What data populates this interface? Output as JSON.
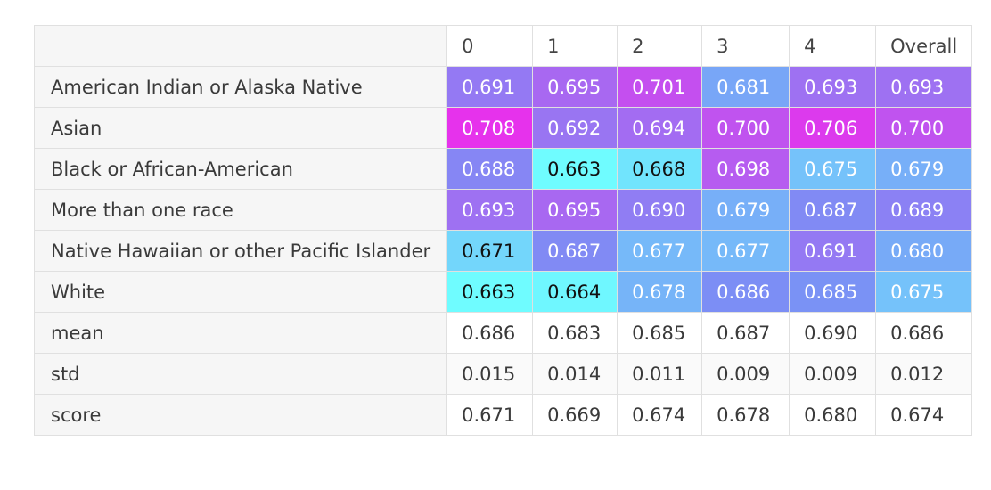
{
  "chart_data": {
    "type": "table",
    "columns": [
      "0",
      "1",
      "2",
      "3",
      "4",
      "Overall"
    ],
    "rows": [
      {
        "label": "American Indian or Alaska Native",
        "values": [
          "0.691",
          "0.695",
          "0.701",
          "0.681",
          "0.693",
          "0.693"
        ],
        "heat": true
      },
      {
        "label": "Asian",
        "values": [
          "0.708",
          "0.692",
          "0.694",
          "0.700",
          "0.706",
          "0.700"
        ],
        "heat": true
      },
      {
        "label": "Black or African-American",
        "values": [
          "0.688",
          "0.663",
          "0.668",
          "0.698",
          "0.675",
          "0.679"
        ],
        "heat": true
      },
      {
        "label": "More than one race",
        "values": [
          "0.693",
          "0.695",
          "0.690",
          "0.679",
          "0.687",
          "0.689"
        ],
        "heat": true
      },
      {
        "label": "Native Hawaiian or other Pacific Islander",
        "values": [
          "0.671",
          "0.687",
          "0.677",
          "0.677",
          "0.691",
          "0.680"
        ],
        "heat": true
      },
      {
        "label": "White",
        "values": [
          "0.663",
          "0.664",
          "0.678",
          "0.686",
          "0.685",
          "0.675"
        ],
        "heat": true
      },
      {
        "label": "mean",
        "values": [
          "0.686",
          "0.683",
          "0.685",
          "0.687",
          "0.690",
          "0.686"
        ],
        "heat": false
      },
      {
        "label": "std",
        "values": [
          "0.015",
          "0.014",
          "0.011",
          "0.009",
          "0.009",
          "0.012"
        ],
        "heat": false
      },
      {
        "label": "score",
        "values": [
          "0.671",
          "0.669",
          "0.674",
          "0.678",
          "0.680",
          "0.674"
        ],
        "heat": false
      }
    ],
    "color_scale": {
      "name": "cool",
      "low_color": "#6ffcff",
      "mid_color": "#7a90f5",
      "high_color": "#e632ec",
      "light_text_color": "#ffffff",
      "dark_text_color": "#111111"
    },
    "title": "",
    "xlabel": "",
    "ylabel": ""
  }
}
